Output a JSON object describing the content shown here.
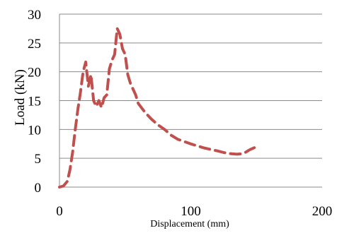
{
  "chart_data": {
    "type": "line",
    "xlabel": "Displacement (mm)",
    "ylabel": "Load (kN)",
    "xlim": [
      0,
      200
    ],
    "ylim": [
      0,
      30
    ],
    "x_ticks": [
      "0",
      "100",
      "200"
    ],
    "y_ticks": [
      "0",
      "5",
      "10",
      "15",
      "20",
      "25",
      "30"
    ],
    "grid": "horizontal",
    "legend": "none",
    "series": [
      {
        "color": "#c0504d",
        "style": "dashed",
        "x": [
          0,
          3,
          6,
          8,
          10,
          12,
          14,
          16,
          18,
          20,
          22,
          24,
          26,
          28,
          30,
          32,
          34,
          36,
          38,
          40,
          42,
          44,
          46,
          48,
          50,
          52,
          54,
          56,
          58,
          60,
          65,
          70,
          75,
          80,
          85,
          90,
          100,
          110,
          120,
          125,
          130,
          135,
          140,
          145,
          150
        ],
        "y": [
          0,
          0.2,
          1.0,
          3.0,
          6.0,
          10.0,
          13.5,
          16.5,
          20.0,
          21.7,
          17.5,
          19.5,
          15.0,
          14.0,
          15.0,
          13.8,
          15.5,
          16.0,
          20.5,
          22.0,
          23.0,
          27.5,
          26.5,
          24.0,
          23.0,
          19.5,
          18.0,
          17.0,
          16.0,
          14.5,
          13.0,
          11.8,
          10.8,
          10.0,
          9.0,
          8.3,
          7.5,
          6.8,
          6.3,
          6.0,
          5.8,
          5.7,
          5.8,
          6.5,
          7.0
        ]
      }
    ]
  }
}
